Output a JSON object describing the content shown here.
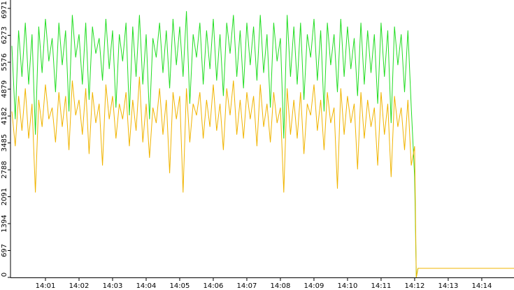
{
  "chart_data": {
    "type": "line",
    "x": [
      840.0,
      840.1,
      840.2,
      840.3,
      840.4,
      840.5,
      840.6,
      840.7,
      840.8,
      840.9,
      841.0,
      841.1,
      841.2,
      841.3,
      841.4,
      841.5,
      841.6,
      841.7,
      841.8,
      841.9,
      842.0,
      842.1,
      842.2,
      842.3,
      842.4,
      842.5,
      842.6,
      842.7,
      842.8,
      842.9,
      843.0,
      843.1,
      843.2,
      843.3,
      843.4,
      843.5,
      843.6,
      843.7,
      843.8,
      843.9,
      844.0,
      844.1,
      844.2,
      844.3,
      844.4,
      844.5,
      844.6,
      844.7,
      844.8,
      844.9,
      845.0,
      845.1,
      845.2,
      845.3,
      845.4,
      845.5,
      845.6,
      845.7,
      845.8,
      845.9,
      846.0,
      846.1,
      846.2,
      846.3,
      846.4,
      846.5,
      846.6,
      846.7,
      846.8,
      846.9,
      847.0,
      847.1,
      847.2,
      847.3,
      847.4,
      847.5,
      847.6,
      847.7,
      847.8,
      847.9,
      848.0,
      848.1,
      848.2,
      848.3,
      848.4,
      848.5,
      848.6,
      848.7,
      848.8,
      848.9,
      849.0,
      849.1,
      849.2,
      849.3,
      849.4,
      849.5,
      849.6,
      849.7,
      849.8,
      849.9,
      850.0,
      850.1,
      850.2,
      850.3,
      850.4,
      850.5,
      850.6,
      850.7,
      850.8,
      850.9,
      851.0,
      851.1,
      851.2,
      851.3,
      851.4,
      851.5,
      851.6,
      851.7,
      851.8,
      851.9,
      852.0,
      852.05,
      852.1,
      854.96
    ],
    "series": [
      {
        "color": "#22dd22",
        "values": [
          6000,
          4100,
          6400,
          5200,
          6600,
          5000,
          6300,
          3700,
          6500,
          5300,
          6700,
          5600,
          6200,
          4800,
          6600,
          5500,
          6400,
          4300,
          6800,
          5700,
          6300,
          5000,
          6600,
          4600,
          6500,
          5800,
          6200,
          5100,
          6700,
          5400,
          6400,
          4400,
          6300,
          5600,
          6600,
          4200,
          6500,
          5200,
          6800,
          5000,
          6300,
          4100,
          6200,
          5700,
          6600,
          5300,
          6400,
          4900,
          6700,
          5500,
          6500,
          5200,
          6900,
          4500,
          6300,
          5700,
          6600,
          5000,
          6400,
          5400,
          6700,
          5100,
          6300,
          4700,
          6600,
          5800,
          6800,
          5200,
          6400,
          4900,
          6600,
          5500,
          6500,
          5100,
          6800,
          5300,
          6300,
          4400,
          6600,
          5600,
          6200,
          3600,
          6800,
          5200,
          6500,
          5000,
          6600,
          4600,
          6300,
          5700,
          6700,
          5100,
          6400,
          4300,
          6600,
          5500,
          6300,
          4800,
          6700,
          5200,
          6500,
          5400,
          6200,
          4700,
          6600,
          5000,
          6400,
          5300,
          6300,
          4500,
          6600,
          5200,
          6400,
          4000,
          6500,
          5500,
          6300,
          4800,
          6400,
          4400,
          2600,
          0,
          235,
          235
        ]
      },
      {
        "color": "#f0b400",
        "values": [
          4300,
          3400,
          4700,
          3800,
          4900,
          3600,
          4500,
          2200,
          4600,
          3900,
          5000,
          4100,
          4400,
          3500,
          4800,
          3900,
          4700,
          3300,
          5100,
          4200,
          4600,
          3700,
          4900,
          3200,
          4800,
          4000,
          4500,
          2900,
          5000,
          4100,
          4700,
          3600,
          4500,
          4100,
          4800,
          3400,
          4600,
          3800,
          5200,
          3500,
          4500,
          3100,
          4400,
          4000,
          4900,
          3700,
          4600,
          2700,
          4800,
          4100,
          4700,
          2200,
          4900,
          3500,
          4500,
          4200,
          4800,
          3600,
          4600,
          3900,
          5000,
          3800,
          4500,
          3300,
          4900,
          4200,
          5100,
          3700,
          4600,
          3600,
          4800,
          4100,
          4700,
          3400,
          5000,
          3900,
          4500,
          3500,
          4800,
          4000,
          4400,
          2200,
          4900,
          3700,
          4600,
          3600,
          4800,
          3200,
          4500,
          4200,
          5000,
          3800,
          4600,
          3300,
          4800,
          4000,
          4400,
          2300,
          4900,
          3700,
          4700,
          4000,
          4500,
          2800,
          4800,
          3600,
          4600,
          3900,
          4400,
          2900,
          4800,
          3700,
          4500,
          2600,
          4700,
          3900,
          4400,
          3300,
          4600,
          2900,
          3400,
          0,
          235,
          235
        ]
      }
    ],
    "xlim": [
      840,
      854.96
    ],
    "xticks": [
      {
        "value": 841,
        "label": "14:01"
      },
      {
        "value": 842,
        "label": "14:02"
      },
      {
        "value": 843,
        "label": "14:03"
      },
      {
        "value": 844,
        "label": "14:04"
      },
      {
        "value": 845,
        "label": "14:05"
      },
      {
        "value": 846,
        "label": "14:06"
      },
      {
        "value": 847,
        "label": "14:07"
      },
      {
        "value": 848,
        "label": "14:08"
      },
      {
        "value": 849,
        "label": "14:09"
      },
      {
        "value": 850,
        "label": "14:10"
      },
      {
        "value": 851,
        "label": "14:11"
      },
      {
        "value": 852,
        "label": "14:12"
      },
      {
        "value": 853,
        "label": "14:13"
      },
      {
        "value": 854,
        "label": "14:14"
      }
    ],
    "ylim": [
      0,
      6971
    ],
    "yticks": [
      0,
      697,
      1394,
      2091,
      2788,
      3485,
      4182,
      4879,
      5576,
      6273,
      6971
    ]
  }
}
